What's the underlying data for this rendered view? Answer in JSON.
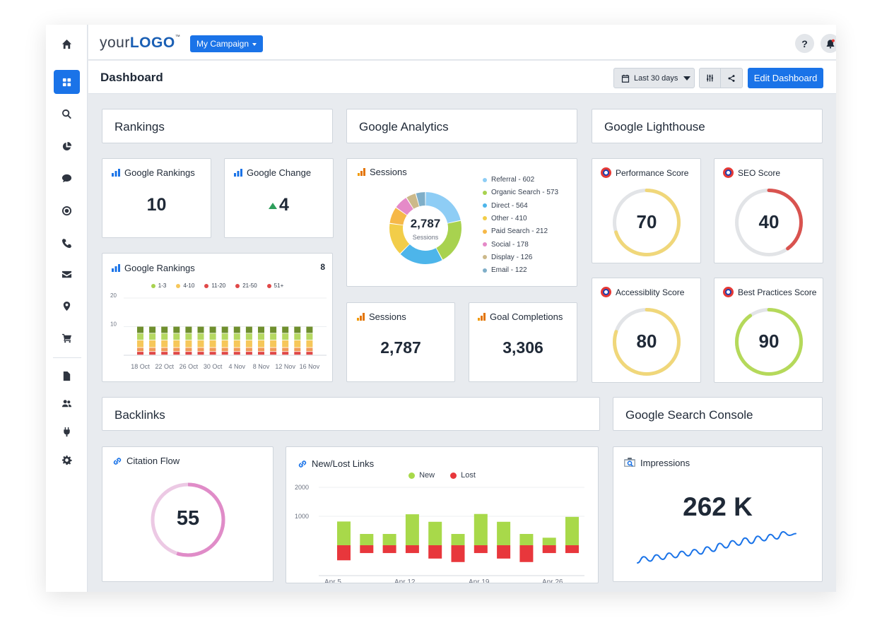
{
  "app": {
    "logo_prefix": "your",
    "logo_bold": "LOGO",
    "logo_tm": "™",
    "campaign_label": "My Campaign",
    "help_label": "?",
    "page_title": "Dashboard",
    "date_range_label": "Last 30 days",
    "edit_button_label": "Edit Dashboard",
    "accent_color": "#1a73e8"
  },
  "sidebar": {
    "items": [
      {
        "icon": "home-icon"
      },
      {
        "icon": "dashboard-grid-icon",
        "active": true
      },
      {
        "icon": "search-icon"
      },
      {
        "icon": "pie-chart-icon"
      },
      {
        "icon": "chat-bubble-icon"
      },
      {
        "icon": "target-icon"
      },
      {
        "icon": "phone-icon"
      },
      {
        "icon": "mail-icon"
      },
      {
        "icon": "map-pin-icon"
      },
      {
        "icon": "cart-icon"
      },
      {
        "icon": "document-icon"
      },
      {
        "icon": "users-icon"
      },
      {
        "icon": "plug-icon"
      },
      {
        "icon": "gear-icon"
      }
    ]
  },
  "sections": {
    "rankings": "Rankings",
    "analytics": "Google Analytics",
    "lighthouse": "Google Lighthouse",
    "backlinks": "Backlinks",
    "search_console": "Google Search Console"
  },
  "rankings": {
    "google_rankings_title": "Google Rankings",
    "google_rankings_value": "10",
    "google_change_title": "Google Change",
    "google_change_value": "4",
    "chart_title": "Google Rankings",
    "chart_badge": "8"
  },
  "analytics": {
    "sessions_title": "Sessions",
    "donut_center_value": "2,787",
    "donut_center_label": "Sessions",
    "sessions_card_title": "Sessions",
    "sessions_card_value": "2,787",
    "goal_title": "Goal Completions",
    "goal_value": "3,306"
  },
  "lighthouse": {
    "scores": [
      {
        "label": "Performance Score",
        "value": "70",
        "color": "#f0d77a"
      },
      {
        "label": "SEO Score",
        "value": "40",
        "color": "#d9534f"
      },
      {
        "label": "Accessiblity Score",
        "value": "80",
        "color": "#f0d77a"
      },
      {
        "label": "Best Practices Score",
        "value": "90",
        "color": "#b5d95a"
      }
    ]
  },
  "backlinks": {
    "citation_title": "Citation Flow",
    "citation_value": "55",
    "citation_color": "#e08cc8",
    "newlost_title": "New/Lost Links"
  },
  "search_console": {
    "impressions_title": "Impressions",
    "impressions_value": "262 K"
  },
  "chart_data": [
    {
      "type": "pie",
      "title": "Sessions",
      "categories": [
        "Referral",
        "Organic Search",
        "Direct",
        "Other",
        "Paid Search",
        "Social",
        "Display",
        "Email"
      ],
      "values": [
        602,
        573,
        564,
        410,
        212,
        178,
        126,
        122
      ],
      "legend": [
        "Referral - 602",
        "Organic Search - 573",
        "Direct - 564",
        "Other - 410",
        "Paid Search - 212",
        "Social - 178",
        "Display - 126",
        "Email - 122"
      ],
      "colors": [
        "#8ecdf5",
        "#a8d24f",
        "#4db5ea",
        "#f2cd49",
        "#f6b848",
        "#e58ac8",
        "#ccb98a",
        "#7faec8"
      ],
      "legend_position": "right"
    },
    {
      "type": "bar",
      "title": "Google Rankings",
      "categories": [
        "18 Oct",
        "",
        "22 Oct",
        "",
        "26 Oct",
        "",
        "30 Oct",
        "",
        "4 Nov",
        "",
        "8 Nov",
        "",
        "12 Nov",
        "",
        "16 Nov"
      ],
      "x_tick_labels": [
        "18 Oct",
        "22 Oct",
        "26 Oct",
        "30 Oct",
        "4 Nov",
        "8 Nov",
        "12 Nov",
        "16 Nov"
      ],
      "y_ticks": [
        "20",
        "10"
      ],
      "ylim": [
        0,
        20
      ],
      "stacked": true,
      "series": [
        {
          "name": "21-50",
          "color": "#e04848",
          "values": [
            1.2,
            1.2,
            1.2,
            1.2,
            1.2,
            1.2,
            1.2,
            1.2,
            1.2,
            1.2,
            1.2,
            1.2,
            1.2,
            1.2,
            1.2
          ]
        },
        {
          "name": "11-20",
          "color": "#f09a58",
          "values": [
            1.4,
            1.4,
            1.4,
            1.4,
            1.4,
            1.4,
            1.4,
            1.4,
            1.4,
            1.4,
            1.4,
            1.4,
            1.4,
            1.4,
            1.4
          ]
        },
        {
          "name": "4-10",
          "color": "#f6c75a",
          "values": [
            2.6,
            2.6,
            2.6,
            2.6,
            2.6,
            2.6,
            2.6,
            2.6,
            2.6,
            2.6,
            2.6,
            2.6,
            2.6,
            2.6,
            2.6
          ]
        },
        {
          "name": "1-3",
          "color": "#b5d861",
          "values": [
            2.4,
            2.4,
            2.4,
            2.4,
            2.4,
            2.4,
            2.4,
            2.4,
            2.4,
            2.4,
            2.4,
            2.4,
            2.4,
            2.4,
            2.4
          ]
        },
        {
          "name": "51+",
          "color": "#6f8f2e",
          "values": [
            2.4,
            2.4,
            2.4,
            2.4,
            2.4,
            2.4,
            2.4,
            2.4,
            2.4,
            2.4,
            2.4,
            2.4,
            2.4,
            2.4,
            2.4
          ]
        }
      ],
      "legend": [
        {
          "name": "1-3",
          "color": "#a8d24f"
        },
        {
          "name": "4-10",
          "color": "#f6c75a"
        },
        {
          "name": "11-20",
          "color": "#e04848"
        },
        {
          "name": "21-50",
          "color": "#e04848"
        },
        {
          "name": "51+",
          "color": "#e04848"
        }
      ],
      "legend_position": "top"
    },
    {
      "type": "bar",
      "title": "New/Lost Links",
      "x_tick_labels": [
        "Apr 5",
        "Apr 12",
        "Apr 19",
        "Apr 26"
      ],
      "y_ticks": [
        "2000",
        "1000"
      ],
      "ylim": [
        0,
        2200
      ],
      "series": [
        {
          "name": "New",
          "color": "#a8d94a",
          "values": [
            820,
            390,
            390,
            1070,
            810,
            390,
            1080,
            810,
            390,
            260,
            980
          ]
        },
        {
          "name": "Lost",
          "color": "#e8373c",
          "values": [
            -520,
            -270,
            -270,
            -270,
            -460,
            -580,
            -270,
            -460,
            -580,
            -270,
            -270
          ]
        }
      ],
      "legend_position": "top"
    },
    {
      "type": "line",
      "title": "Impressions",
      "values": [
        5,
        12,
        7,
        14,
        9,
        16,
        11,
        18,
        13,
        20,
        15,
        23,
        18,
        27,
        22,
        30,
        25,
        33,
        27,
        35,
        30,
        37,
        32,
        40,
        36,
        38
      ]
    }
  ]
}
